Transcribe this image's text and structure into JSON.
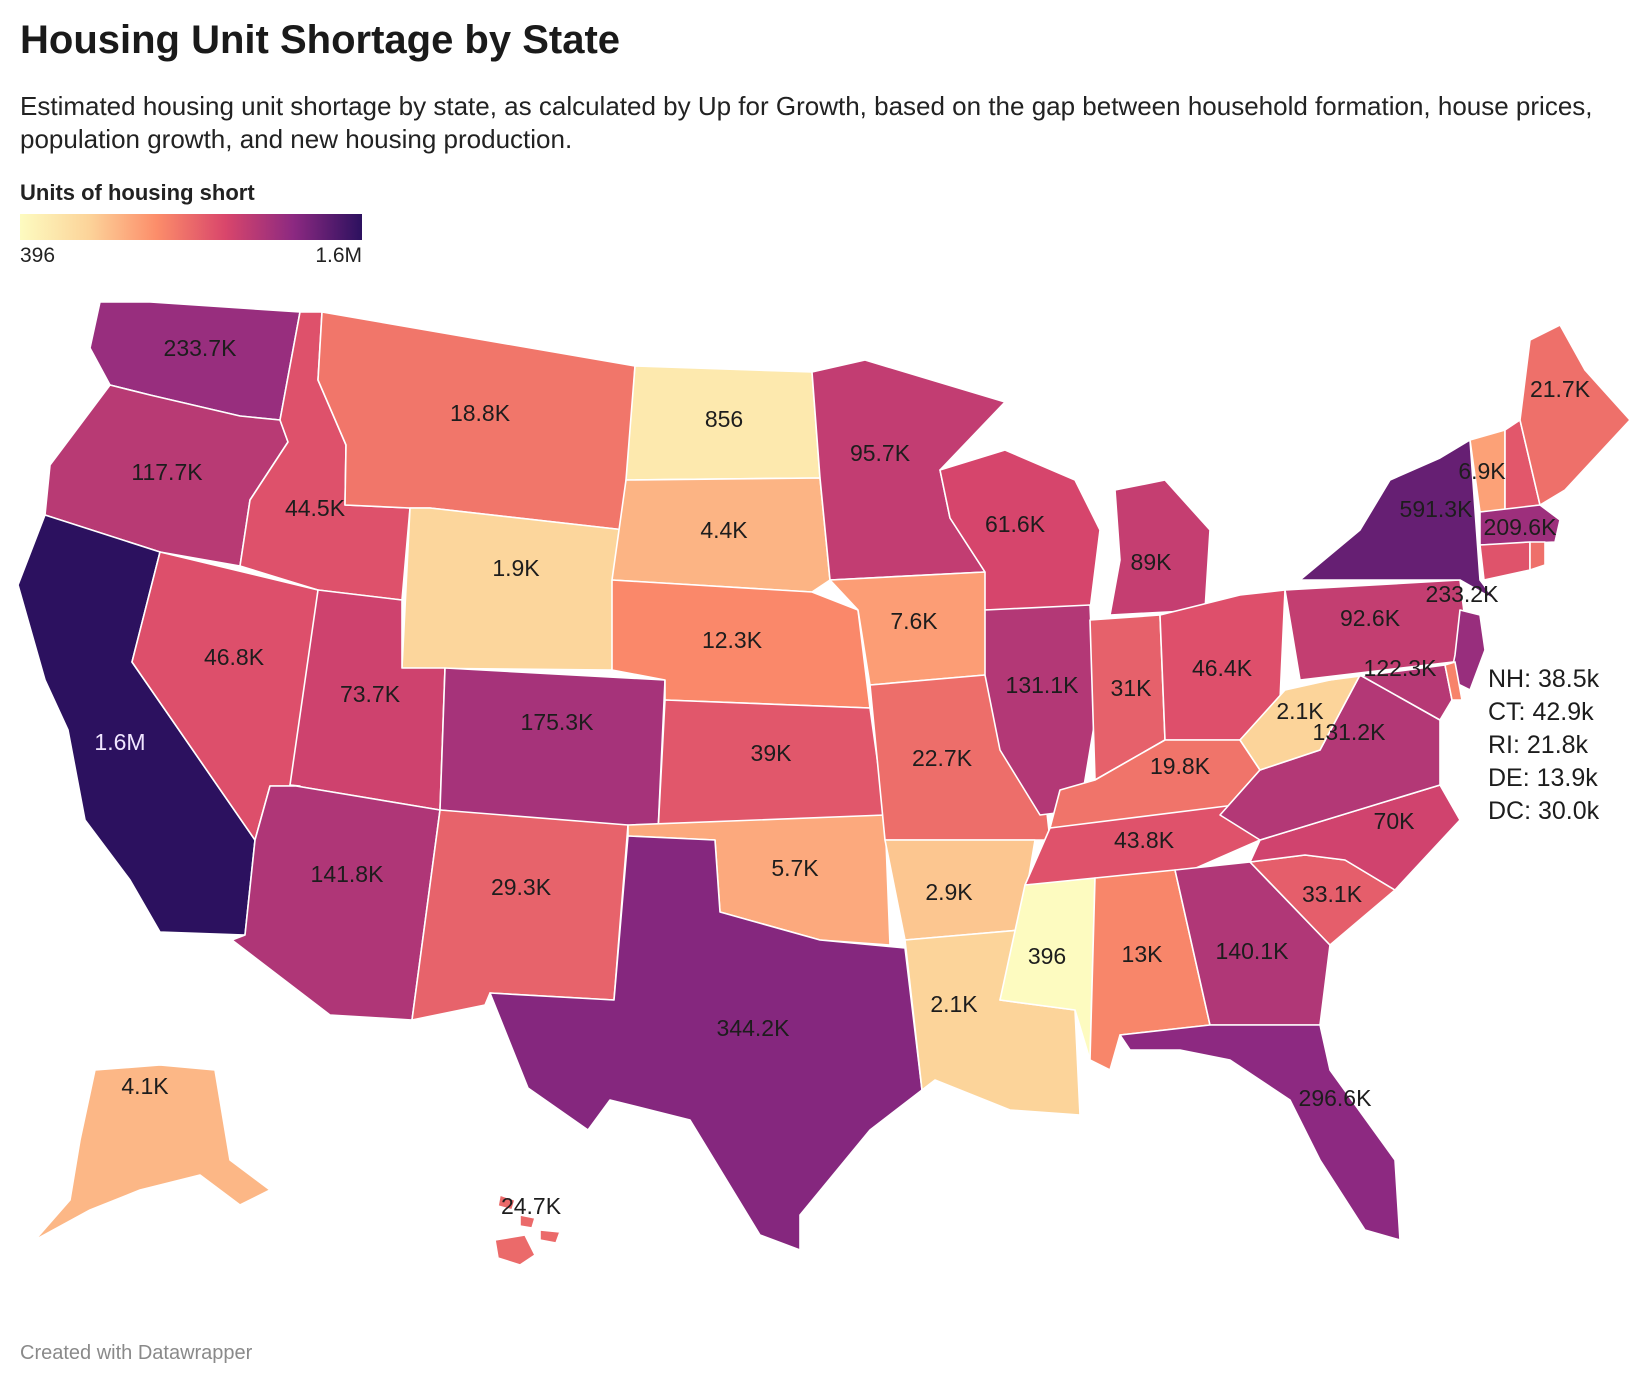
{
  "header": {
    "title": "Housing Unit Shortage by State",
    "subtitle": "Estimated housing unit shortage by state, as calculated by Up for Growth, based on the gap between household formation, house prices, population growth, and new housing production."
  },
  "legend": {
    "title": "Units of housing short",
    "min_label": "396",
    "max_label": "1.6M",
    "min_value": 396,
    "max_value": 1600000,
    "gradient_colors": [
      "#fdfbc0",
      "#fcd49a",
      "#fc8d6a",
      "#d9466b",
      "#8c2981",
      "#2c115f"
    ]
  },
  "states": {
    "WA": {
      "label": "233.7K",
      "value": 233700
    },
    "OR": {
      "label": "117.7K",
      "value": 117700
    },
    "CA": {
      "label": "1.6M",
      "value": 1600000
    },
    "ID": {
      "label": "44.5K",
      "value": 44500
    },
    "NV": {
      "label": "46.8K",
      "value": 46800
    },
    "MT": {
      "label": "18.8K",
      "value": 18800
    },
    "WY": {
      "label": "1.9K",
      "value": 1900
    },
    "UT": {
      "label": "73.7K",
      "value": 73700
    },
    "AZ": {
      "label": "141.8K",
      "value": 141800
    },
    "CO": {
      "label": "175.3K",
      "value": 175300
    },
    "NM": {
      "label": "29.3K",
      "value": 29300
    },
    "ND": {
      "label": "856",
      "value": 856
    },
    "SD": {
      "label": "4.4K",
      "value": 4400
    },
    "NE": {
      "label": "12.3K",
      "value": 12300
    },
    "KS": {
      "label": "39K",
      "value": 39000
    },
    "OK": {
      "label": "5.7K",
      "value": 5700
    },
    "TX": {
      "label": "344.2K",
      "value": 344200
    },
    "MN": {
      "label": "95.7K",
      "value": 95700
    },
    "IA": {
      "label": "7.6K",
      "value": 7600
    },
    "MO": {
      "label": "22.7K",
      "value": 22700
    },
    "AR": {
      "label": "2.9K",
      "value": 2900
    },
    "LA": {
      "label": "2.1K",
      "value": 2100
    },
    "WI": {
      "label": "61.6K",
      "value": 61600
    },
    "IL": {
      "label": "131.1K",
      "value": 131100
    },
    "MI": {
      "label": "89K",
      "value": 89000
    },
    "IN": {
      "label": "31K",
      "value": 31000
    },
    "OH": {
      "label": "46.4K",
      "value": 46400
    },
    "KY": {
      "label": "19.8K",
      "value": 19800
    },
    "TN": {
      "label": "43.8K",
      "value": 43800
    },
    "MS": {
      "label": "396",
      "value": 396
    },
    "AL": {
      "label": "13K",
      "value": 13000
    },
    "GA": {
      "label": "140.1K",
      "value": 140100
    },
    "FL": {
      "label": "296.6K",
      "value": 296600
    },
    "SC": {
      "label": "33.1K",
      "value": 33100
    },
    "NC": {
      "label": "70K",
      "value": 70000
    },
    "VA": {
      "label": "131.2K",
      "value": 131200
    },
    "WV": {
      "label": "2.1K",
      "value": 2100
    },
    "PA": {
      "label": "92.6K",
      "value": 92600
    },
    "NY": {
      "label": "591.3K",
      "value": 591300
    },
    "NJ": {
      "label": "233.2K",
      "value": 233200
    },
    "MD": {
      "label": "122.3K",
      "value": 122300
    },
    "VT": {
      "label": "6.9K",
      "value": 6900
    },
    "MA": {
      "label": "209.6K",
      "value": 209600
    },
    "ME": {
      "label": "21.7K",
      "value": 21700
    },
    "AK": {
      "label": "4.1K",
      "value": 4100
    },
    "HI": {
      "label": "24.7K",
      "value": 24700
    }
  },
  "small_states_note": [
    "NH: 38.5k",
    "CT: 42.9k",
    "RI: 21.8k",
    "DE: 13.9k",
    "DC: 30.0k"
  ],
  "footer": {
    "credit": "Created with Datawrapper"
  }
}
